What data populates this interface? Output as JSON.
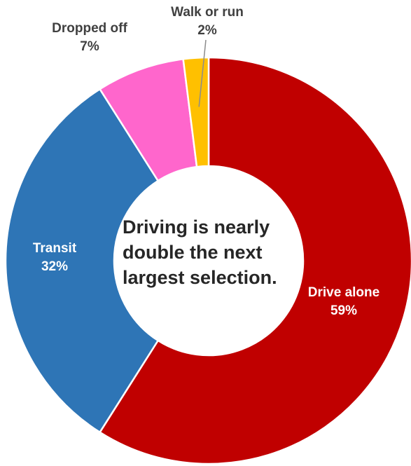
{
  "chart_data": {
    "type": "pie",
    "variant": "donut",
    "slices": [
      {
        "label": "Drive alone",
        "value": 59,
        "display": "59%",
        "color": "#C00000",
        "label_position": "inside"
      },
      {
        "label": "Transit",
        "value": 32,
        "display": "32%",
        "color": "#2E75B6",
        "label_position": "inside"
      },
      {
        "label": "Dropped off",
        "value": 7,
        "display": "7%",
        "color": "#FF66CC",
        "label_position": "outside"
      },
      {
        "label": "Walk or run",
        "value": 2,
        "display": "2%",
        "color": "#FFC000",
        "label_position": "outside",
        "leader_line": true
      }
    ],
    "start": "12 o'clock",
    "direction": "clockwise",
    "center_text": "Driving is nearly double the next largest selection."
  }
}
